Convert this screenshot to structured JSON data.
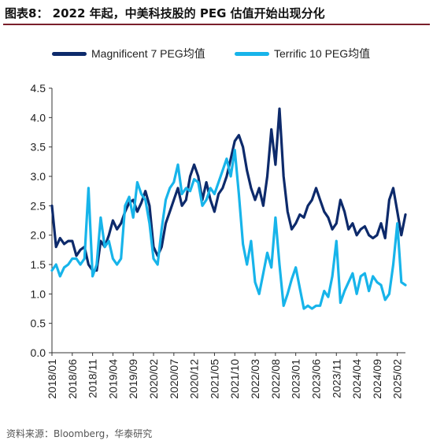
{
  "title": "图表8： 2022 年起，中美科技股的 PEG 估值开始出现分化",
  "source": "资料来源：Bloomberg，华泰研究",
  "colors": {
    "series1": "#0d2a6b",
    "series2": "#17b4ea",
    "rule": "#7a1f2b"
  },
  "chart_data": {
    "type": "line",
    "ylim": [
      0,
      4.5
    ],
    "yticks": [
      "0.0",
      "0.5",
      "1.0",
      "1.5",
      "2.0",
      "2.5",
      "3.0",
      "3.5",
      "4.0",
      "4.5"
    ],
    "xticks": [
      "2018/01",
      "2018/06",
      "2018/11",
      "2019/04",
      "2019/09",
      "2020/02",
      "2020/07",
      "2020/12",
      "2021/05",
      "2021/10",
      "2022/03",
      "2022/08",
      "2023/01",
      "2023/06",
      "2023/11",
      "2024/04",
      "2024/09",
      "2025/02"
    ],
    "grid": false,
    "legend_position": "top",
    "series": [
      {
        "name": "Magnificent 7 PEG均值",
        "color": "#0d2a6b",
        "points": [
          [
            "2018/01",
            2.5
          ],
          [
            "2018/02",
            1.8
          ],
          [
            "2018/03",
            1.95
          ],
          [
            "2018/04",
            1.85
          ],
          [
            "2018/05",
            1.9
          ],
          [
            "2018/06",
            1.9
          ],
          [
            "2018/07",
            1.65
          ],
          [
            "2018/08",
            1.75
          ],
          [
            "2018/09",
            1.8
          ],
          [
            "2018/10",
            1.5
          ],
          [
            "2018/11",
            1.4
          ],
          [
            "2018/12",
            1.4
          ],
          [
            "2019/01",
            1.9
          ],
          [
            "2019/02",
            1.8
          ],
          [
            "2019/03",
            2.0
          ],
          [
            "2019/04",
            2.25
          ],
          [
            "2019/05",
            2.1
          ],
          [
            "2019/06",
            2.2
          ],
          [
            "2019/07",
            2.4
          ],
          [
            "2019/08",
            2.55
          ],
          [
            "2019/09",
            2.6
          ],
          [
            "2019/10",
            2.4
          ],
          [
            "2019/11",
            2.55
          ],
          [
            "2019/12",
            2.75
          ],
          [
            "2020/01",
            2.5
          ],
          [
            "2020/02",
            1.8
          ],
          [
            "2020/03",
            1.65
          ],
          [
            "2020/04",
            1.8
          ],
          [
            "2020/05",
            2.2
          ],
          [
            "2020/06",
            2.4
          ],
          [
            "2020/07",
            2.6
          ],
          [
            "2020/08",
            2.8
          ],
          [
            "2020/09",
            2.5
          ],
          [
            "2020/10",
            2.6
          ],
          [
            "2020/11",
            3.0
          ],
          [
            "2020/12",
            3.2
          ],
          [
            "2021/01",
            3.0
          ],
          [
            "2021/02",
            2.6
          ],
          [
            "2021/03",
            2.9
          ],
          [
            "2021/04",
            2.6
          ],
          [
            "2021/05",
            2.4
          ],
          [
            "2021/06",
            2.7
          ],
          [
            "2021/07",
            2.8
          ],
          [
            "2021/08",
            3.0
          ],
          [
            "2021/09",
            3.3
          ],
          [
            "2021/10",
            3.6
          ],
          [
            "2021/11",
            3.7
          ],
          [
            "2021/12",
            3.5
          ],
          [
            "2022/01",
            3.1
          ],
          [
            "2022/02",
            2.8
          ],
          [
            "2022/03",
            2.6
          ],
          [
            "2022/04",
            2.8
          ],
          [
            "2022/05",
            2.5
          ],
          [
            "2022/06",
            3.0
          ],
          [
            "2022/07",
            3.8
          ],
          [
            "2022/08",
            3.2
          ],
          [
            "2022/09",
            4.15
          ],
          [
            "2022/10",
            3.0
          ],
          [
            "2022/11",
            2.4
          ],
          [
            "2022/12",
            2.1
          ],
          [
            "2023/01",
            2.2
          ],
          [
            "2023/02",
            2.35
          ],
          [
            "2023/03",
            2.3
          ],
          [
            "2023/04",
            2.5
          ],
          [
            "2023/05",
            2.6
          ],
          [
            "2023/06",
            2.8
          ],
          [
            "2023/07",
            2.6
          ],
          [
            "2023/08",
            2.4
          ],
          [
            "2023/09",
            2.3
          ],
          [
            "2023/10",
            2.1
          ],
          [
            "2023/11",
            2.2
          ],
          [
            "2023/12",
            2.6
          ],
          [
            "2024/01",
            2.4
          ],
          [
            "2024/02",
            2.1
          ],
          [
            "2024/03",
            2.2
          ],
          [
            "2024/04",
            2.0
          ],
          [
            "2024/05",
            2.1
          ],
          [
            "2024/06",
            2.15
          ],
          [
            "2024/07",
            2.0
          ],
          [
            "2024/08",
            1.95
          ],
          [
            "2024/09",
            2.0
          ],
          [
            "2024/10",
            2.2
          ],
          [
            "2024/11",
            1.95
          ],
          [
            "2024/12",
            2.6
          ],
          [
            "2025/01",
            2.8
          ],
          [
            "2025/02",
            2.4
          ],
          [
            "2025/03",
            2.0
          ],
          [
            "2025/04",
            2.35
          ]
        ]
      },
      {
        "name": "Terrific 10 PEG均值",
        "color": "#17b4ea",
        "points": [
          [
            "2018/01",
            1.4
          ],
          [
            "2018/02",
            1.5
          ],
          [
            "2018/03",
            1.3
          ],
          [
            "2018/04",
            1.45
          ],
          [
            "2018/05",
            1.5
          ],
          [
            "2018/06",
            1.6
          ],
          [
            "2018/07",
            1.6
          ],
          [
            "2018/08",
            1.5
          ],
          [
            "2018/09",
            1.6
          ],
          [
            "2018/10",
            2.8
          ],
          [
            "2018/11",
            1.3
          ],
          [
            "2018/12",
            1.5
          ],
          [
            "2019/01",
            2.3
          ],
          [
            "2019/02",
            1.8
          ],
          [
            "2019/03",
            1.9
          ],
          [
            "2019/04",
            1.6
          ],
          [
            "2019/05",
            1.5
          ],
          [
            "2019/06",
            1.6
          ],
          [
            "2019/07",
            2.5
          ],
          [
            "2019/08",
            2.65
          ],
          [
            "2019/09",
            2.3
          ],
          [
            "2019/10",
            2.9
          ],
          [
            "2019/11",
            2.7
          ],
          [
            "2019/12",
            2.6
          ],
          [
            "2020/01",
            2.2
          ],
          [
            "2020/02",
            1.6
          ],
          [
            "2020/03",
            1.5
          ],
          [
            "2020/04",
            2.1
          ],
          [
            "2020/05",
            2.6
          ],
          [
            "2020/06",
            2.8
          ],
          [
            "2020/07",
            2.9
          ],
          [
            "2020/08",
            3.2
          ],
          [
            "2020/09",
            2.7
          ],
          [
            "2020/10",
            2.8
          ],
          [
            "2020/11",
            2.75
          ],
          [
            "2020/12",
            2.95
          ],
          [
            "2021/01",
            2.9
          ],
          [
            "2021/02",
            2.5
          ],
          [
            "2021/03",
            2.6
          ],
          [
            "2021/04",
            2.8
          ],
          [
            "2021/05",
            2.7
          ],
          [
            "2021/06",
            2.9
          ],
          [
            "2021/07",
            3.1
          ],
          [
            "2021/08",
            3.3
          ],
          [
            "2021/09",
            3.0
          ],
          [
            "2021/10",
            3.45
          ],
          [
            "2021/11",
            2.7
          ],
          [
            "2021/12",
            1.85
          ],
          [
            "2022/01",
            1.5
          ],
          [
            "2022/02",
            1.9
          ],
          [
            "2022/03",
            1.2
          ],
          [
            "2022/04",
            1.0
          ],
          [
            "2022/05",
            1.35
          ],
          [
            "2022/06",
            1.7
          ],
          [
            "2022/07",
            1.45
          ],
          [
            "2022/08",
            2.3
          ],
          [
            "2022/09",
            1.5
          ],
          [
            "2022/10",
            0.8
          ],
          [
            "2022/11",
            1.0
          ],
          [
            "2022/12",
            1.25
          ],
          [
            "2023/01",
            1.45
          ],
          [
            "2023/02",
            1.1
          ],
          [
            "2023/03",
            0.75
          ],
          [
            "2023/04",
            0.8
          ],
          [
            "2023/05",
            0.75
          ],
          [
            "2023/06",
            0.8
          ],
          [
            "2023/07",
            0.8
          ],
          [
            "2023/08",
            1.05
          ],
          [
            "2023/09",
            0.95
          ],
          [
            "2023/10",
            1.3
          ],
          [
            "2023/11",
            1.9
          ],
          [
            "2023/12",
            0.85
          ],
          [
            "2024/01",
            1.05
          ],
          [
            "2024/02",
            1.2
          ],
          [
            "2024/03",
            1.35
          ],
          [
            "2024/04",
            1.0
          ],
          [
            "2024/05",
            1.3
          ],
          [
            "2024/06",
            1.35
          ],
          [
            "2024/07",
            1.05
          ],
          [
            "2024/08",
            1.3
          ],
          [
            "2024/09",
            1.2
          ],
          [
            "2024/10",
            1.15
          ],
          [
            "2024/11",
            0.9
          ],
          [
            "2024/12",
            1.0
          ],
          [
            "2025/01",
            1.5
          ],
          [
            "2025/02",
            2.2
          ],
          [
            "2025/03",
            1.2
          ],
          [
            "2025/04",
            1.15
          ]
        ]
      }
    ]
  }
}
